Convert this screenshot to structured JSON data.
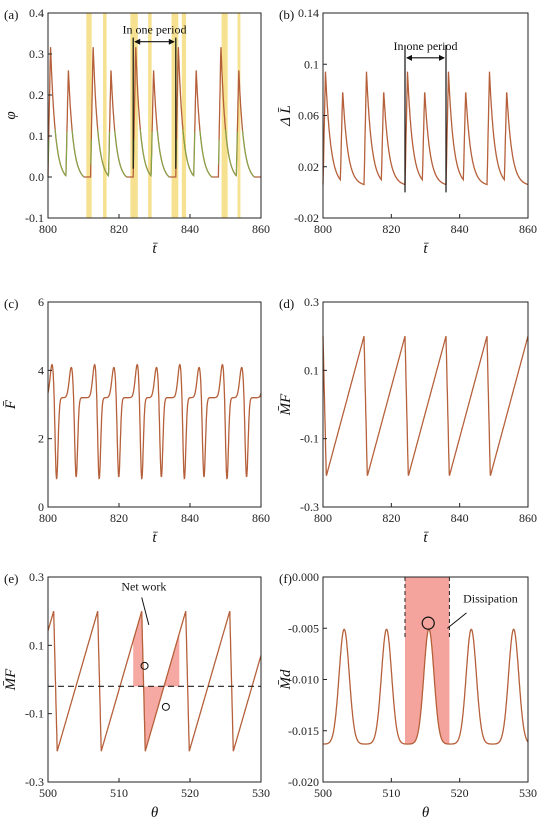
{
  "colors": {
    "curve": "#b5603a",
    "green": "#6fbf4a",
    "highlight": "#f4dc7c",
    "fill": "#f39a92",
    "dashed": "#222222"
  },
  "chart_data": [
    {
      "id": "a",
      "type": "line",
      "panel_label": "(a)",
      "xlabel": "t̄",
      "ylabel": "φ",
      "xlim": [
        800,
        860
      ],
      "ylim": [
        -0.1,
        0.4
      ],
      "xticks": [
        "800",
        "820",
        "840",
        "860"
      ],
      "yticks": [
        "-0.1",
        "0.0",
        "0.1",
        "0.2",
        "0.3",
        "0.4"
      ],
      "annotation": "In one period",
      "period_bounds": [
        824,
        836
      ],
      "highlight_bands": [
        [
          810.8,
          812.3
        ],
        [
          815.5,
          816.5
        ],
        [
          823.2,
          825.3
        ],
        [
          828.2,
          829.2
        ],
        [
          834.8,
          836.7
        ],
        [
          837.7,
          838.9
        ],
        [
          848.9,
          850.6
        ],
        [
          853.4,
          854.2
        ]
      ],
      "curve": {
        "kind": "phi",
        "period": 12.0,
        "t0": 800,
        "drop_at": [
          0.0,
          5.1
        ]
      }
    },
    {
      "id": "b",
      "type": "line",
      "panel_label": "(b)",
      "xlabel": "t̄",
      "ylabel": "Δ L̄",
      "xlim": [
        800,
        860
      ],
      "ylim": [
        -0.02,
        0.14
      ],
      "xticks": [
        "800",
        "820",
        "840",
        "860"
      ],
      "yticks": [
        "-0.02",
        "0.02",
        "0.06",
        "0.1",
        "0.14"
      ],
      "annotation": "In one period",
      "period_bounds": [
        824,
        836
      ],
      "curve": {
        "kind": "dl",
        "period": 12.0,
        "t0": 800
      }
    },
    {
      "id": "c",
      "type": "line",
      "panel_label": "(c)",
      "xlabel": "t̄",
      "ylabel": "F̄",
      "xlim": [
        800,
        860
      ],
      "ylim": [
        0,
        6
      ],
      "xticks": [
        "800",
        "820",
        "840",
        "860"
      ],
      "yticks": [
        "0",
        "2",
        "4",
        "6"
      ],
      "curve": {
        "kind": "force",
        "period": 12.0,
        "t0": 800
      }
    },
    {
      "id": "d",
      "type": "line",
      "panel_label": "(d)",
      "xlabel": "t̄",
      "ylabel": "M̄F",
      "xlim": [
        800,
        860
      ],
      "ylim": [
        -0.3,
        0.3
      ],
      "xticks": [
        "800",
        "820",
        "840",
        "860"
      ],
      "yticks": [
        "-0.3",
        "-0.1",
        "0.1",
        "0.3"
      ],
      "curve": {
        "kind": "moment",
        "period": 12.0,
        "t0": 800,
        "peak_phase": 0.0
      }
    },
    {
      "id": "e",
      "type": "area",
      "panel_label": "(e)",
      "xlabel": "θ",
      "ylabel": "M̄F",
      "xlim": [
        500,
        530
      ],
      "ylim": [
        -0.3,
        0.3
      ],
      "xticks": [
        "500",
        "510",
        "520",
        "530"
      ],
      "yticks": [
        "-0.3",
        "-0.1",
        "0.1",
        "0.3"
      ],
      "annotation": "Net work",
      "mean_line": -0.02,
      "fill_range": [
        512,
        518.5
      ],
      "curve": {
        "kind": "moment_theta",
        "period": 6.2,
        "t0": 500.8
      }
    },
    {
      "id": "f",
      "type": "area",
      "panel_label": "(f)",
      "xlabel": "θ",
      "ylabel": "M̄d",
      "xlim": [
        500,
        530
      ],
      "ylim": [
        -0.02,
        0.0
      ],
      "xticks": [
        "500",
        "510",
        "520",
        "530"
      ],
      "yticks": [
        "-0.020",
        "-0.015",
        "-0.010",
        "-0.005",
        "0.000"
      ],
      "annotation": "Dissipation",
      "fill_range": [
        512,
        518.5
      ],
      "curve": {
        "kind": "damp",
        "period": 6.2,
        "t0": 500
      }
    }
  ]
}
